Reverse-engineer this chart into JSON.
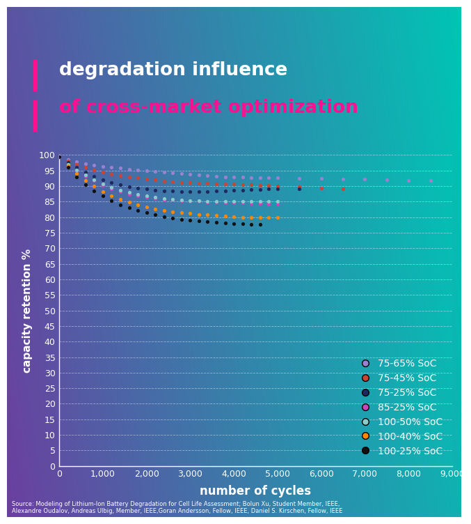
{
  "title_line1": "degradation influence",
  "title_line2": "of cross-market optimization",
  "xlabel": "number of cycles",
  "ylabel": "capacity retention %",
  "source_text": "Source: Modeling of Lithium-Ion Battery Degradation for Cell Life Assessment; Bolun Xu, Student Member, IEEE,\nAlexandre Oudalov, Andreas Ulbig, Member, IEEE,G̈oran Andersson, Fellow, IEEE, Daniel S. Kirschen, Fellow, IEEE",
  "xlim": [
    0,
    9000
  ],
  "ylim": [
    0,
    100
  ],
  "xticks": [
    0,
    1000,
    2000,
    3000,
    4000,
    5000,
    6000,
    7000,
    8000,
    9000
  ],
  "yticks": [
    0,
    5,
    10,
    15,
    20,
    25,
    30,
    35,
    40,
    45,
    50,
    55,
    60,
    65,
    70,
    75,
    80,
    85,
    90,
    95,
    100
  ],
  "series": [
    {
      "label": "75-65% SoC",
      "color": "#9B82D0",
      "cycles": [
        0,
        200,
        400,
        600,
        800,
        1000,
        1200,
        1400,
        1600,
        1800,
        2000,
        2200,
        2400,
        2600,
        2800,
        3000,
        3200,
        3400,
        3600,
        3800,
        4000,
        4200,
        4400,
        4600,
        4800,
        5000,
        5500,
        6000,
        6500,
        7000,
        7500,
        8000,
        8500
      ],
      "capacity": [
        99.5,
        98.5,
        97.8,
        97.2,
        96.7,
        96.3,
        96.0,
        95.7,
        95.4,
        95.1,
        94.8,
        94.6,
        94.4,
        94.2,
        94.0,
        93.8,
        93.6,
        93.4,
        93.2,
        93.0,
        92.9,
        92.8,
        92.7,
        92.7,
        92.7,
        92.7,
        92.5,
        92.5,
        92.3,
        92.2,
        92.0,
        91.8,
        91.7
      ]
    },
    {
      "label": "75-45% SoC",
      "color": "#CC4433",
      "cycles": [
        0,
        200,
        400,
        600,
        800,
        1000,
        1200,
        1400,
        1600,
        1800,
        2000,
        2200,
        2400,
        2600,
        2800,
        3000,
        3200,
        3400,
        3600,
        3800,
        4000,
        4200,
        4400,
        4600,
        4800,
        5000,
        5500,
        6000,
        6500
      ],
      "capacity": [
        99.5,
        98.0,
        97.0,
        96.0,
        95.2,
        94.5,
        93.9,
        93.4,
        93.0,
        92.6,
        92.2,
        91.9,
        91.6,
        91.4,
        91.2,
        91.0,
        90.9,
        90.8,
        90.7,
        90.6,
        90.6,
        90.5,
        90.4,
        90.3,
        90.1,
        89.9,
        89.7,
        89.4,
        89.1
      ]
    },
    {
      "label": "75-25% SoC",
      "color": "#1E2A5E",
      "cycles": [
        0,
        200,
        400,
        600,
        800,
        1000,
        1200,
        1400,
        1600,
        1800,
        2000,
        2200,
        2400,
        2600,
        2800,
        3000,
        3200,
        3400,
        3600,
        3800,
        4000,
        4200,
        4400,
        4600,
        4800,
        5000,
        5500
      ],
      "capacity": [
        99.5,
        97.5,
        96.0,
        94.5,
        93.2,
        92.0,
        91.2,
        90.4,
        89.8,
        89.3,
        89.0,
        88.7,
        88.5,
        88.4,
        88.3,
        88.2,
        88.2,
        88.3,
        88.4,
        88.5,
        88.6,
        88.7,
        88.8,
        88.9,
        89.0,
        89.0,
        89.0
      ]
    },
    {
      "label": "85-25% SoC",
      "color": "#CC44BB",
      "cycles": [
        0,
        200,
        400,
        600,
        800,
        1000,
        1200,
        1400,
        1600,
        1800,
        2000,
        2200,
        2400,
        2600,
        2800,
        3000,
        3200,
        3400,
        3600,
        3800,
        4000,
        4200,
        4400,
        4600,
        4800,
        5000
      ],
      "capacity": [
        99.5,
        97.0,
        95.0,
        93.2,
        91.7,
        90.3,
        89.2,
        88.2,
        87.4,
        86.8,
        86.3,
        85.9,
        85.6,
        85.4,
        85.2,
        85.1,
        85.0,
        84.9,
        84.8,
        84.7,
        84.6,
        84.5,
        84.4,
        84.3,
        84.2,
        84.1
      ]
    },
    {
      "label": "100-50% SoC",
      "color": "#88CCCC",
      "cycles": [
        0,
        200,
        400,
        600,
        800,
        1000,
        1200,
        1400,
        1600,
        1800,
        2000,
        2200,
        2400,
        2600,
        2800,
        3000,
        3200,
        3400,
        3600,
        3800,
        4000,
        4200,
        4400,
        4600,
        4800,
        5000
      ],
      "capacity": [
        99.5,
        97.0,
        95.2,
        93.5,
        92.0,
        90.7,
        89.6,
        88.7,
        87.9,
        87.3,
        86.8,
        86.4,
        86.0,
        85.7,
        85.5,
        85.3,
        85.2,
        85.1,
        85.0,
        85.0,
        85.0,
        85.0,
        85.0,
        85.0,
        85.0,
        85.0
      ]
    },
    {
      "label": "100-40% SoC",
      "color": "#FF8800",
      "cycles": [
        0,
        200,
        400,
        600,
        800,
        1000,
        1200,
        1400,
        1600,
        1800,
        2000,
        2200,
        2400,
        2600,
        2800,
        3000,
        3200,
        3400,
        3600,
        3800,
        4000,
        4200,
        4400,
        4600,
        4800,
        5000
      ],
      "capacity": [
        99.5,
        96.5,
        94.0,
        91.8,
        90.0,
        88.3,
        86.9,
        85.7,
        84.8,
        84.0,
        83.3,
        82.7,
        82.2,
        81.8,
        81.5,
        81.2,
        80.9,
        80.7,
        80.5,
        80.3,
        80.1,
        80.0,
        79.9,
        79.9,
        79.8,
        79.8
      ]
    },
    {
      "label": "100-25% SoC",
      "color": "#111111",
      "cycles": [
        0,
        200,
        400,
        600,
        800,
        1000,
        1200,
        1400,
        1600,
        1800,
        2000,
        2200,
        2400,
        2600,
        2800,
        3000,
        3200,
        3400,
        3600,
        3800,
        4000,
        4200,
        4400,
        4600
      ],
      "capacity": [
        99.5,
        96.0,
        93.0,
        90.5,
        88.5,
        86.8,
        85.3,
        84.0,
        83.0,
        82.2,
        81.5,
        80.8,
        80.2,
        79.7,
        79.3,
        79.0,
        78.7,
        78.5,
        78.3,
        78.1,
        78.0,
        77.8,
        77.7,
        77.6
      ]
    }
  ]
}
